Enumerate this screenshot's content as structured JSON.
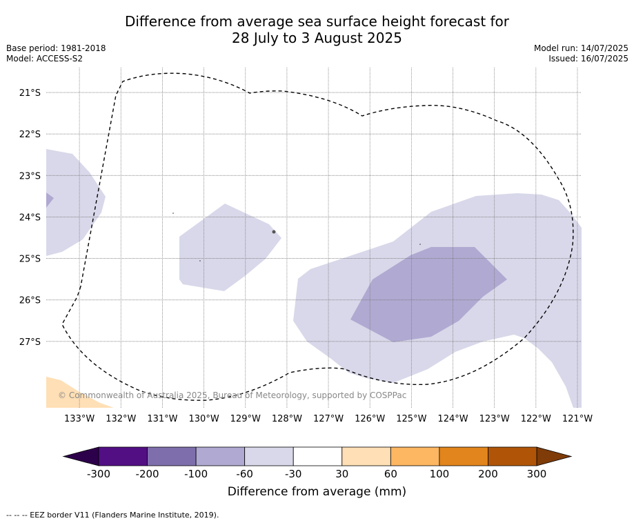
{
  "title_line1": "Difference from average sea surface height forecast for",
  "title_line2": "28 July to 3 August 2025",
  "meta": {
    "base_period": "Base period: 1981-2018",
    "model": "Model: ACCESS-S2",
    "model_run": "Model run: 14/07/2025",
    "issued": "Issued: 16/07/2025"
  },
  "map": {
    "lat_labels": [
      "21°S",
      "22°S",
      "23°S",
      "24°S",
      "25°S",
      "26°S",
      "27°S"
    ],
    "lon_labels": [
      "133°W",
      "132°W",
      "131°W",
      "130°W",
      "129°W",
      "128°W",
      "127°W",
      "126°W",
      "125°W",
      "124°W",
      "123°W",
      "122°W",
      "121°W"
    ],
    "lat_range": [
      -28.6,
      -20.4
    ],
    "lon_range": [
      -133.8,
      -120.9
    ],
    "copyright": "© Commonwealth of Australia 2025, Bureau of Meteorology, supported by COSPPac"
  },
  "colorbar": {
    "title": "Difference from average (mm)",
    "tick_labels": [
      "-300",
      "-200",
      "-100",
      "-60",
      "-30",
      "30",
      "60",
      "100",
      "200",
      "300"
    ],
    "colors": [
      "#520f84",
      "#7e6fac",
      "#b0a9d1",
      "#d8d8ea",
      "#ffffff",
      "#ffdfb5",
      "#fdb662",
      "#e1851c",
      "#b05507"
    ],
    "under_color": "#2d004b",
    "over_color": "#7f3b08"
  },
  "legend": {
    "eez_border": "--  --  -- EEZ border V11 (Flanders Marine Institute, 2019)."
  }
}
